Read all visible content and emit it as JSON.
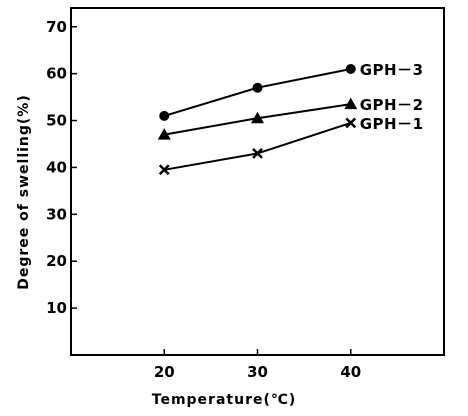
{
  "chart_data": {
    "type": "line",
    "xlabel": "Temperature(℃)",
    "ylabel": "Degree of swelling(%)",
    "xlim": [
      10,
      50
    ],
    "ylim": [
      0,
      74
    ],
    "x_ticks": [
      20,
      30,
      40
    ],
    "y_ticks": [
      10,
      20,
      30,
      40,
      50,
      60,
      70
    ],
    "grid": false,
    "legend": "inline labels at right end of each line",
    "series": [
      {
        "name": "GPH－3",
        "marker": "circle",
        "x": [
          20,
          30,
          40
        ],
        "y": [
          51,
          57,
          61
        ]
      },
      {
        "name": "GPH－2",
        "marker": "triangle",
        "x": [
          20,
          30,
          40
        ],
        "y": [
          47,
          50.5,
          53.5
        ]
      },
      {
        "name": "GPH－1",
        "marker": "x",
        "x": [
          20,
          30,
          40
        ],
        "y": [
          39.5,
          43,
          49.5
        ]
      }
    ]
  }
}
